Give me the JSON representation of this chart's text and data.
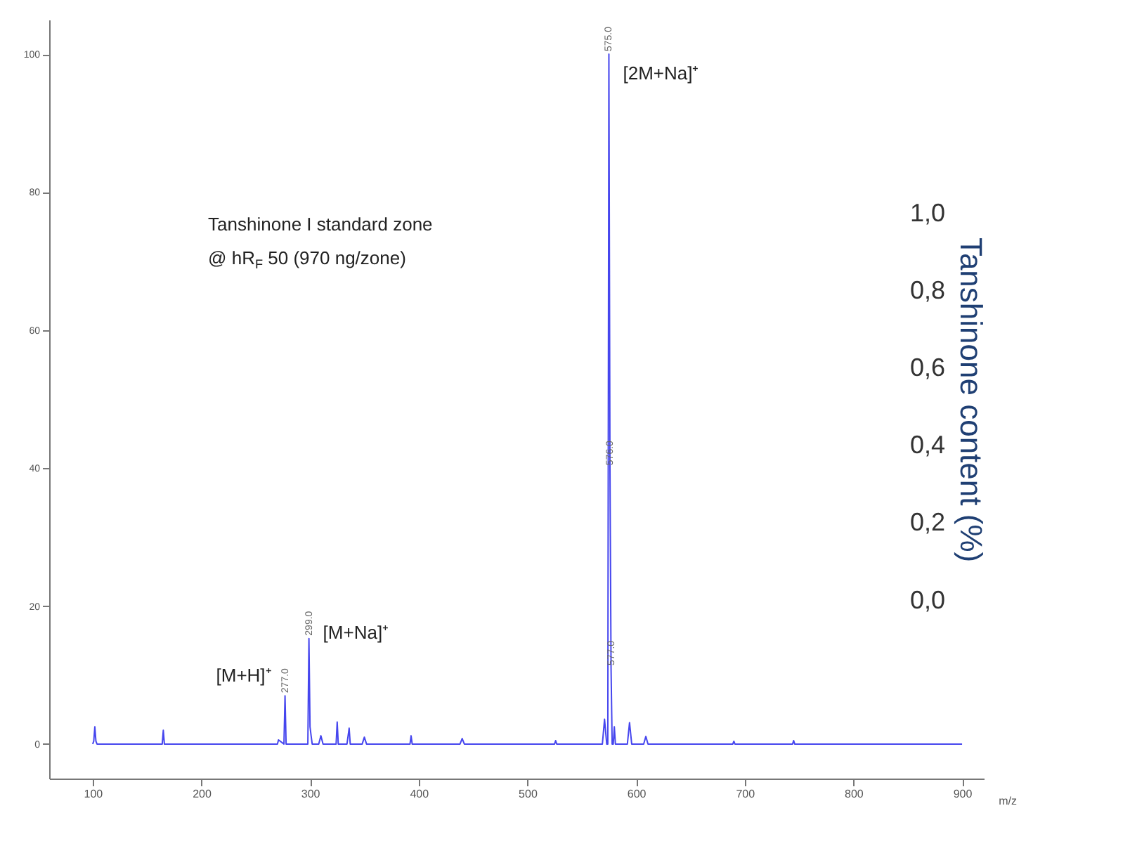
{
  "chart_data": {
    "type": "line",
    "color": "#4646ee",
    "xlabel": "m/z",
    "y2label": "Tanshinone content (%)",
    "x": [
      100,
      101,
      102,
      103,
      104,
      164,
      165,
      166,
      270,
      271,
      276,
      277,
      278,
      290,
      298,
      299,
      300,
      301,
      302,
      308,
      310,
      312,
      322,
      324,
      325,
      326,
      334,
      336,
      337,
      348,
      350,
      352,
      392,
      393,
      394,
      438,
      440,
      442,
      525,
      526,
      527,
      569,
      571,
      573,
      574,
      575,
      576,
      577,
      578,
      579,
      580,
      581,
      592,
      594,
      596,
      607,
      609,
      611,
      689,
      690,
      691,
      744,
      745,
      746,
      900
    ],
    "values": [
      0,
      0.4,
      2.5,
      0.4,
      0,
      0,
      2,
      0,
      0,
      0.6,
      0,
      7,
      0,
      0,
      0,
      15.3,
      2.5,
      1.2,
      0,
      0,
      1.2,
      0,
      0,
      0,
      3.2,
      0,
      0,
      2.3,
      0,
      0,
      1,
      0,
      0,
      1.2,
      0,
      0,
      0.8,
      0,
      0,
      0.5,
      0,
      0,
      3.6,
      0,
      0,
      100,
      40,
      11,
      0,
      0,
      2.5,
      0,
      0,
      3.1,
      0,
      0,
      1.1,
      0,
      0,
      0.4,
      0,
      0,
      0.5,
      0,
      0
    ],
    "xlim": [
      60,
      920
    ],
    "xticks": [
      100,
      200,
      300,
      400,
      500,
      600,
      700,
      800,
      900
    ],
    "ylim": [
      -5,
      105
    ],
    "yticks": [
      0,
      20,
      40,
      60,
      80,
      100
    ],
    "y2lim": [
      -0.46,
      1.5
    ],
    "y2ticks": [
      {
        "value": 0,
        "label": "0,0"
      },
      {
        "value": 0.2,
        "label": "0,2"
      },
      {
        "value": 0.4,
        "label": "0,4"
      },
      {
        "value": 0.6,
        "label": "0,6"
      },
      {
        "value": 0.8,
        "label": "0,8"
      },
      {
        "value": 1,
        "label": "1,0"
      }
    ],
    "annotations": [
      "Tanshinone I standard zone",
      "@ hR$_{F}$ 50 (970 ng/zone)",
      {
        "text": "[M+H]⁺",
        "x": 277,
        "y": 7
      },
      {
        "text": "[M+Na]⁺",
        "x": 299,
        "y": 15.3
      },
      {
        "text": "[2M+Na]⁺",
        "x": 575,
        "y": 100
      },
      {
        "text": "277.0",
        "x": 277,
        "y": 7
      },
      {
        "text": "299.0",
        "x": 299,
        "y": 15.3
      },
      {
        "text": "575.0",
        "x": 575,
        "y": 100
      },
      {
        "text": "576.0",
        "x": 576,
        "y": 40
      },
      {
        "text": "577.0",
        "x": 577,
        "y": 11
      }
    ]
  }
}
